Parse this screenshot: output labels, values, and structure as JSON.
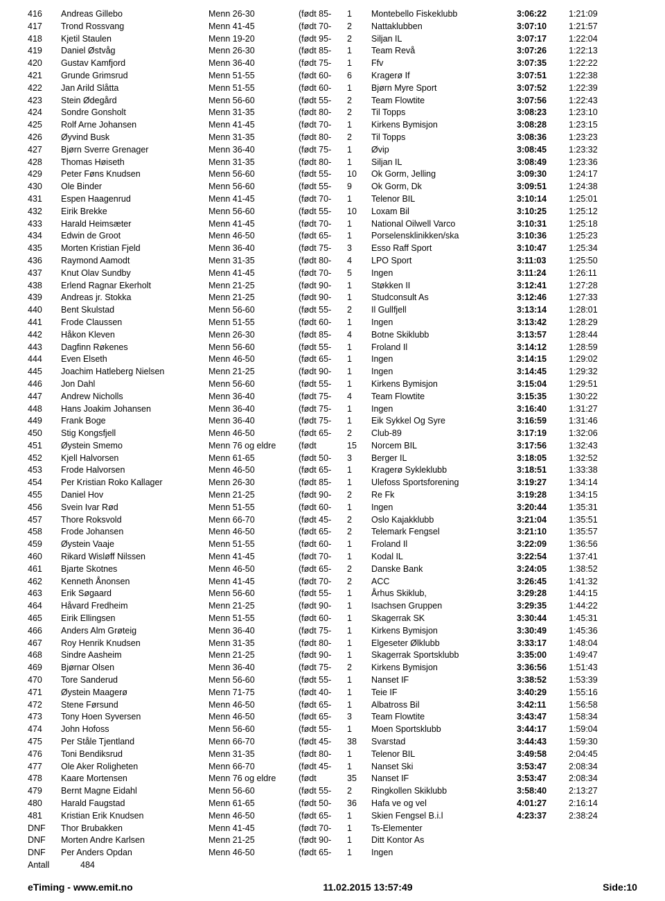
{
  "rows": [
    {
      "p": "416",
      "n": "Andreas Gillebo",
      "cat": "Menn 26-30",
      "b": "(født 85-",
      "num": "1",
      "club": "Montebello Fiskeklubb",
      "t1": "3:06:22",
      "t2": "1:21:09"
    },
    {
      "p": "417",
      "n": "Trond Rossvang",
      "cat": "Menn 41-45",
      "b": "(født 70-",
      "num": "2",
      "club": "Nattaklubben",
      "t1": "3:07:10",
      "t2": "1:21:57"
    },
    {
      "p": "418",
      "n": "Kjetil Staulen",
      "cat": "Menn 19-20",
      "b": "(født 95-",
      "num": "2",
      "club": "Siljan IL",
      "t1": "3:07:17",
      "t2": "1:22:04"
    },
    {
      "p": "419",
      "n": "Daniel Østvåg",
      "cat": "Menn 26-30",
      "b": "(født 85-",
      "num": "1",
      "club": "Team Revå",
      "t1": "3:07:26",
      "t2": "1:22:13"
    },
    {
      "p": "420",
      "n": "Gustav Kamfjord",
      "cat": "Menn 36-40",
      "b": "(født 75-",
      "num": "1",
      "club": "Ffv",
      "t1": "3:07:35",
      "t2": "1:22:22"
    },
    {
      "p": "421",
      "n": "Grunde Grimsrud",
      "cat": "Menn 51-55",
      "b": "(født 60-",
      "num": "6",
      "club": "Kragerø If",
      "t1": "3:07:51",
      "t2": "1:22:38"
    },
    {
      "p": "422",
      "n": "Jan Arild Slåtta",
      "cat": "Menn 51-55",
      "b": "(født 60-",
      "num": "1",
      "club": "Bjørn Myre Sport",
      "t1": "3:07:52",
      "t2": "1:22:39"
    },
    {
      "p": "423",
      "n": "Stein Ødegård",
      "cat": "Menn 56-60",
      "b": "(født 55-",
      "num": "2",
      "club": "Team Flowtite",
      "t1": "3:07:56",
      "t2": "1:22:43"
    },
    {
      "p": "424",
      "n": "Sondre Gonsholt",
      "cat": "Menn 31-35",
      "b": "(født 80-",
      "num": "2",
      "club": "Til Topps",
      "t1": "3:08:23",
      "t2": "1:23:10"
    },
    {
      "p": "425",
      "n": "Rolf Arne Johansen",
      "cat": "Menn 41-45",
      "b": "(født 70-",
      "num": "1",
      "club": "Kirkens Bymisjon",
      "t1": "3:08:28",
      "t2": "1:23:15"
    },
    {
      "p": "426",
      "n": "Øyvind Busk",
      "cat": "Menn 31-35",
      "b": "(født 80-",
      "num": "2",
      "club": "Til Topps",
      "t1": "3:08:36",
      "t2": "1:23:23"
    },
    {
      "p": "427",
      "n": "Bjørn Sverre Grenager",
      "cat": "Menn 36-40",
      "b": "(født 75-",
      "num": "1",
      "club": "Øvip",
      "t1": "3:08:45",
      "t2": "1:23:32"
    },
    {
      "p": "428",
      "n": "Thomas Høiseth",
      "cat": "Menn 31-35",
      "b": "(født 80-",
      "num": "1",
      "club": "Siljan IL",
      "t1": "3:08:49",
      "t2": "1:23:36"
    },
    {
      "p": "429",
      "n": "Peter Føns Knudsen",
      "cat": "Menn 56-60",
      "b": "(født 55-",
      "num": "10",
      "club": "Ok Gorm, Jelling",
      "t1": "3:09:30",
      "t2": "1:24:17"
    },
    {
      "p": "430",
      "n": "Ole Binder",
      "cat": "Menn 56-60",
      "b": "(født 55-",
      "num": "9",
      "club": "Ok Gorm, Dk",
      "t1": "3:09:51",
      "t2": "1:24:38"
    },
    {
      "p": "431",
      "n": "Espen Haagenrud",
      "cat": "Menn 41-45",
      "b": "(født 70-",
      "num": "1",
      "club": "Telenor BIL",
      "t1": "3:10:14",
      "t2": "1:25:01"
    },
    {
      "p": "432",
      "n": "Eirik Brekke",
      "cat": "Menn 56-60",
      "b": "(født 55-",
      "num": "10",
      "club": "Loxam Bil",
      "t1": "3:10:25",
      "t2": "1:25:12"
    },
    {
      "p": "433",
      "n": "Harald Heimsæter",
      "cat": "Menn 41-45",
      "b": "(født 70-",
      "num": "1",
      "club": "National Oilwell Varco",
      "t1": "3:10:31",
      "t2": "1:25:18"
    },
    {
      "p": "434",
      "n": "Edwin de Groot",
      "cat": "Menn 46-50",
      "b": "(født 65-",
      "num": "1",
      "club": "Porselensklinikken/ska",
      "t1": "3:10:36",
      "t2": "1:25:23"
    },
    {
      "p": "435",
      "n": "Morten Kristian Fjeld",
      "cat": "Menn 36-40",
      "b": "(født 75-",
      "num": "3",
      "club": "Esso Raff Sport",
      "t1": "3:10:47",
      "t2": "1:25:34"
    },
    {
      "p": "436",
      "n": "Raymond Aamodt",
      "cat": "Menn 31-35",
      "b": "(født 80-",
      "num": "4",
      "club": "LPO Sport",
      "t1": "3:11:03",
      "t2": "1:25:50"
    },
    {
      "p": "437",
      "n": "Knut Olav Sundby",
      "cat": "Menn 41-45",
      "b": "(født 70-",
      "num": "5",
      "club": "Ingen",
      "t1": "3:11:24",
      "t2": "1:26:11"
    },
    {
      "p": "438",
      "n": "Erlend Ragnar Ekerholt",
      "cat": "Menn 21-25",
      "b": "(født 90-",
      "num": "1",
      "club": "Støkken II",
      "t1": "3:12:41",
      "t2": "1:27:28"
    },
    {
      "p": "439",
      "n": "Andreas jr. Stokka",
      "cat": "Menn 21-25",
      "b": "(født 90-",
      "num": "1",
      "club": "Studconsult As",
      "t1": "3:12:46",
      "t2": "1:27:33"
    },
    {
      "p": "440",
      "n": "Bent Skulstad",
      "cat": "Menn 56-60",
      "b": "(født 55-",
      "num": "2",
      "club": "Il Gullfjell",
      "t1": "3:13:14",
      "t2": "1:28:01"
    },
    {
      "p": "441",
      "n": "Frode Claussen",
      "cat": "Menn 51-55",
      "b": "(født 60-",
      "num": "1",
      "club": "Ingen",
      "t1": "3:13:42",
      "t2": "1:28:29"
    },
    {
      "p": "442",
      "n": "Håkon Kleven",
      "cat": "Menn 26-30",
      "b": "(født 85-",
      "num": "4",
      "club": "Botne Skiklubb",
      "t1": "3:13:57",
      "t2": "1:28:44"
    },
    {
      "p": "443",
      "n": "Dagfinn Røkenes",
      "cat": "Menn 56-60",
      "b": "(født 55-",
      "num": "1",
      "club": "Froland Il",
      "t1": "3:14:12",
      "t2": "1:28:59"
    },
    {
      "p": "444",
      "n": "Even Elseth",
      "cat": "Menn 46-50",
      "b": "(født 65-",
      "num": "1",
      "club": "Ingen",
      "t1": "3:14:15",
      "t2": "1:29:02"
    },
    {
      "p": "445",
      "n": "Joachim Hatleberg Nielsen",
      "cat": "Menn 21-25",
      "b": "(født 90-",
      "num": "1",
      "club": "Ingen",
      "t1": "3:14:45",
      "t2": "1:29:32"
    },
    {
      "p": "446",
      "n": "Jon Dahl",
      "cat": "Menn 56-60",
      "b": "(født 55-",
      "num": "1",
      "club": "Kirkens Bymisjon",
      "t1": "3:15:04",
      "t2": "1:29:51"
    },
    {
      "p": "447",
      "n": "Andrew Nicholls",
      "cat": "Menn 36-40",
      "b": "(født 75-",
      "num": "4",
      "club": "Team Flowtite",
      "t1": "3:15:35",
      "t2": "1:30:22"
    },
    {
      "p": "448",
      "n": "Hans Joakim Johansen",
      "cat": "Menn 36-40",
      "b": "(født 75-",
      "num": "1",
      "club": "Ingen",
      "t1": "3:16:40",
      "t2": "1:31:27"
    },
    {
      "p": "449",
      "n": "Frank Boge",
      "cat": "Menn 36-40",
      "b": "(født 75-",
      "num": "1",
      "club": "Eik Sykkel Og Syre",
      "t1": "3:16:59",
      "t2": "1:31:46"
    },
    {
      "p": "450",
      "n": "Stig Kongsfjell",
      "cat": "Menn 46-50",
      "b": "(født 65-",
      "num": "2",
      "club": "Club-89",
      "t1": "3:17:19",
      "t2": "1:32:06"
    },
    {
      "p": "451",
      "n": "Øystein Smemo",
      "cat": "Menn 76 og eldre",
      "b": "(født",
      "num": "15",
      "club": "Norcem BIL",
      "t1": "3:17:56",
      "t2": "1:32:43"
    },
    {
      "p": "452",
      "n": "Kjell Halvorsen",
      "cat": "Menn 61-65",
      "b": "(født 50-",
      "num": "3",
      "club": "Berger IL",
      "t1": "3:18:05",
      "t2": "1:32:52"
    },
    {
      "p": "453",
      "n": "Frode Halvorsen",
      "cat": "Menn 46-50",
      "b": "(født 65-",
      "num": "1",
      "club": "Kragerø Sykleklubb",
      "t1": "3:18:51",
      "t2": "1:33:38"
    },
    {
      "p": "454",
      "n": "Per Kristian Roko Kallager",
      "cat": "Menn 26-30",
      "b": "(født 85-",
      "num": "1",
      "club": "Ulefoss Sportsforening",
      "t1": "3:19:27",
      "t2": "1:34:14"
    },
    {
      "p": "455",
      "n": "Daniel Hov",
      "cat": "Menn 21-25",
      "b": "(født 90-",
      "num": "2",
      "club": "Re Fk",
      "t1": "3:19:28",
      "t2": "1:34:15"
    },
    {
      "p": "456",
      "n": "Svein Ivar Rød",
      "cat": "Menn 51-55",
      "b": "(født 60-",
      "num": "1",
      "club": "Ingen",
      "t1": "3:20:44",
      "t2": "1:35:31"
    },
    {
      "p": "457",
      "n": "Thore Roksvold",
      "cat": "Menn 66-70",
      "b": "(født 45-",
      "num": "2",
      "club": "Oslo Kajakklubb",
      "t1": "3:21:04",
      "t2": "1:35:51"
    },
    {
      "p": "458",
      "n": "Frode Johansen",
      "cat": "Menn 46-50",
      "b": "(født 65-",
      "num": "2",
      "club": "Telemark Fengsel",
      "t1": "3:21:10",
      "t2": "1:35:57"
    },
    {
      "p": "459",
      "n": "Øystein Vaaje",
      "cat": "Menn 51-55",
      "b": "(født 60-",
      "num": "1",
      "club": "Froland Il",
      "t1": "3:22:09",
      "t2": "1:36:56"
    },
    {
      "p": "460",
      "n": "Rikard Wisløff Nilssen",
      "cat": "Menn 41-45",
      "b": "(født 70-",
      "num": "1",
      "club": "Kodal IL",
      "t1": "3:22:54",
      "t2": "1:37:41"
    },
    {
      "p": "461",
      "n": "Bjarte Skotnes",
      "cat": "Menn 46-50",
      "b": "(født 65-",
      "num": "2",
      "club": "Danske Bank",
      "t1": "3:24:05",
      "t2": "1:38:52"
    },
    {
      "p": "462",
      "n": "Kenneth Ånonsen",
      "cat": "Menn 41-45",
      "b": "(født 70-",
      "num": "2",
      "club": "ACC",
      "t1": "3:26:45",
      "t2": "1:41:32"
    },
    {
      "p": "463",
      "n": "Erik Søgaard",
      "cat": "Menn 56-60",
      "b": "(født 55-",
      "num": "1",
      "club": "Århus Skiklub,",
      "t1": "3:29:28",
      "t2": "1:44:15"
    },
    {
      "p": "464",
      "n": "Håvard Fredheim",
      "cat": "Menn 21-25",
      "b": "(født 90-",
      "num": "1",
      "club": "Isachsen Gruppen",
      "t1": "3:29:35",
      "t2": "1:44:22"
    },
    {
      "p": "465",
      "n": "Eirik Ellingsen",
      "cat": "Menn 51-55",
      "b": "(født 60-",
      "num": "1",
      "club": "Skagerrak SK",
      "t1": "3:30:44",
      "t2": "1:45:31"
    },
    {
      "p": "466",
      "n": "Anders Alm Grøteig",
      "cat": "Menn 36-40",
      "b": "(født 75-",
      "num": "1",
      "club": "Kirkens Bymisjon",
      "t1": "3:30:49",
      "t2": "1:45:36"
    },
    {
      "p": "467",
      "n": "Roy Henrik Knudsen",
      "cat": "Menn 31-35",
      "b": "(født 80-",
      "num": "1",
      "club": "Elgeseter Ølklubb",
      "t1": "3:33:17",
      "t2": "1:48:04"
    },
    {
      "p": "468",
      "n": "Sindre Aasheim",
      "cat": "Menn 21-25",
      "b": "(født 90-",
      "num": "1",
      "club": "Skagerrak Sportsklubb",
      "t1": "3:35:00",
      "t2": "1:49:47"
    },
    {
      "p": "469",
      "n": "Bjørnar Olsen",
      "cat": "Menn 36-40",
      "b": "(født 75-",
      "num": "2",
      "club": "Kirkens Bymisjon",
      "t1": "3:36:56",
      "t2": "1:51:43"
    },
    {
      "p": "470",
      "n": "Tore Sanderud",
      "cat": "Menn 56-60",
      "b": "(født 55-",
      "num": "1",
      "club": "Nanset IF",
      "t1": "3:38:52",
      "t2": "1:53:39"
    },
    {
      "p": "471",
      "n": "Øystein Maagerø",
      "cat": "Menn 71-75",
      "b": "(født 40-",
      "num": "1",
      "club": "Teie IF",
      "t1": "3:40:29",
      "t2": "1:55:16"
    },
    {
      "p": "472",
      "n": "Stene Førsund",
      "cat": "Menn 46-50",
      "b": "(født 65-",
      "num": "1",
      "club": "Albatross Bil",
      "t1": "3:42:11",
      "t2": "1:56:58"
    },
    {
      "p": "473",
      "n": "Tony Hoen Syversen",
      "cat": "Menn 46-50",
      "b": "(født 65-",
      "num": "3",
      "club": "Team Flowtite",
      "t1": "3:43:47",
      "t2": "1:58:34"
    },
    {
      "p": "474",
      "n": "John Hofoss",
      "cat": "Menn 56-60",
      "b": "(født 55-",
      "num": "1",
      "club": "Moen Sportsklubb",
      "t1": "3:44:17",
      "t2": "1:59:04"
    },
    {
      "p": "475",
      "n": "Per Ståle Tjentland",
      "cat": "Menn 66-70",
      "b": "(født 45-",
      "num": "38",
      "club": "Svarstad",
      "t1": "3:44:43",
      "t2": "1:59:30"
    },
    {
      "p": "476",
      "n": "Toni Bendiksrud",
      "cat": "Menn 31-35",
      "b": "(født 80-",
      "num": "1",
      "club": "Telenor BIL",
      "t1": "3:49:58",
      "t2": "2:04:45"
    },
    {
      "p": "477",
      "n": "Ole Aker Roligheten",
      "cat": "Menn 66-70",
      "b": "(født 45-",
      "num": "1",
      "club": "Nanset Ski",
      "t1": "3:53:47",
      "t2": "2:08:34"
    },
    {
      "p": "478",
      "n": "Kaare Mortensen",
      "cat": "Menn 76 og eldre",
      "b": "(født",
      "num": "35",
      "club": "Nanset IF",
      "t1": "3:53:47",
      "t2": "2:08:34"
    },
    {
      "p": "479",
      "n": "Bernt Magne Eidahl",
      "cat": "Menn 56-60",
      "b": "(født 55-",
      "num": "2",
      "club": "Ringkollen Skiklubb",
      "t1": "3:58:40",
      "t2": "2:13:27"
    },
    {
      "p": "480",
      "n": "Harald Faugstad",
      "cat": "Menn 61-65",
      "b": "(født 50-",
      "num": "36",
      "club": "Hafa ve og vel",
      "t1": "4:01:27",
      "t2": "2:16:14"
    },
    {
      "p": "481",
      "n": "Kristian Erik Knudsen",
      "cat": "Menn 46-50",
      "b": "(født 65-",
      "num": "1",
      "club": "Skien Fengsel B.i.l",
      "t1": "4:23:37",
      "t2": "2:38:24"
    },
    {
      "p": "DNF",
      "n": "Thor Brubakken",
      "cat": "Menn 41-45",
      "b": "(født 70-",
      "num": "1",
      "club": "Ts-Elementer",
      "t1": "",
      "t2": ""
    },
    {
      "p": "DNF",
      "n": "Morten Andre Karlsen",
      "cat": "Menn 21-25",
      "b": "(født 90-",
      "num": "1",
      "club": "Ditt Kontor As",
      "t1": "",
      "t2": ""
    },
    {
      "p": "DNF",
      "n": "Per Anders Opdan",
      "cat": "Menn 46-50",
      "b": "(født 65-",
      "num": "1",
      "club": "Ingen",
      "t1": "",
      "t2": ""
    }
  ],
  "total": {
    "label": "Antall",
    "value": "484"
  },
  "footer": {
    "left": "eTiming - www.emit.no",
    "center": "11.02.2015 13:57:49",
    "right": "Side:10"
  }
}
